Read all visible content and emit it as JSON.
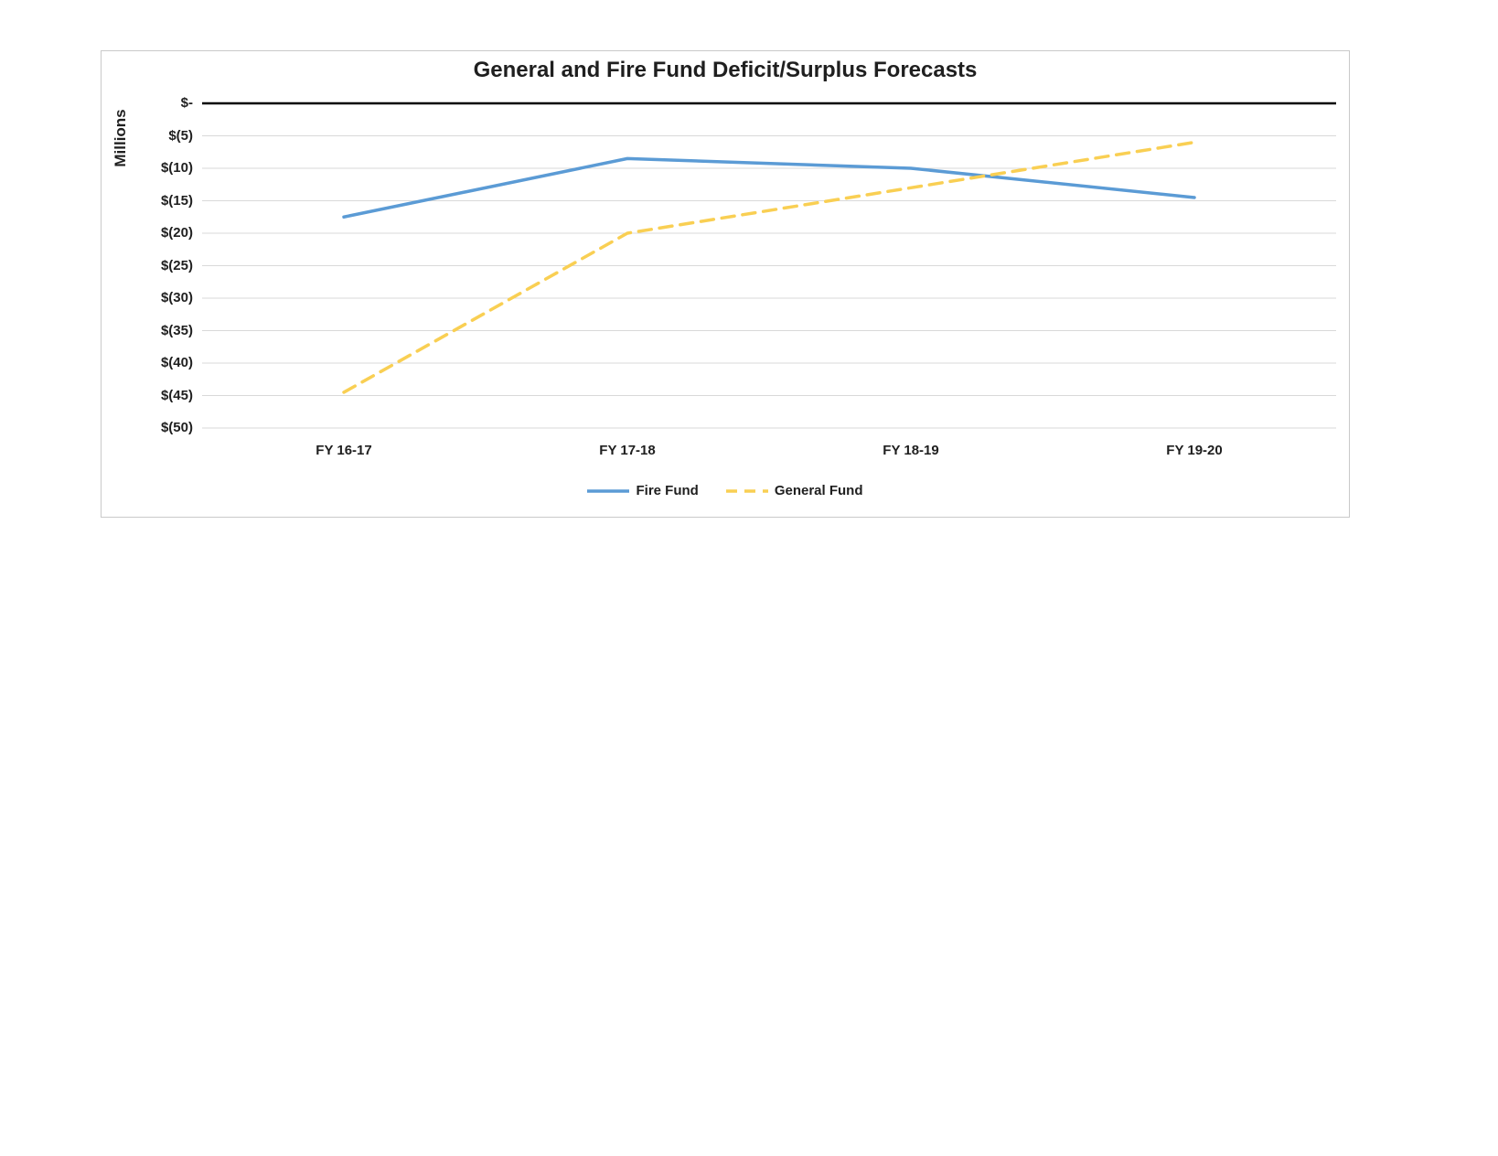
{
  "chart_data": {
    "type": "line",
    "title": "General and Fire Fund Deficit/Surplus Forecasts",
    "ylabel": "Millions",
    "xlabel": "",
    "categories": [
      "FY 16-17",
      "FY 17-18",
      "FY 18-19",
      "FY 19-20"
    ],
    "series": [
      {
        "name": "Fire Fund",
        "values": [
          -17.5,
          -8.5,
          -10,
          -14.5
        ],
        "color": "#5B9BD5",
        "style": "solid"
      },
      {
        "name": "General Fund",
        "values": [
          -44.5,
          -20,
          -13,
          -6
        ],
        "color": "#F9CF53",
        "style": "dashed"
      }
    ],
    "ylim": [
      -50,
      0
    ],
    "ytick_step": 5,
    "ytick_labels": [
      "$-",
      "$(5)",
      "$(10)",
      "$(15)",
      "$(20)",
      "$(25)",
      "$(30)",
      "$(35)",
      "$(40)",
      "$(45)",
      "$(50)"
    ],
    "grid": true,
    "gridline_color": "#D9D9D9",
    "axis_line_color": "#000000",
    "legend_position": "bottom"
  }
}
